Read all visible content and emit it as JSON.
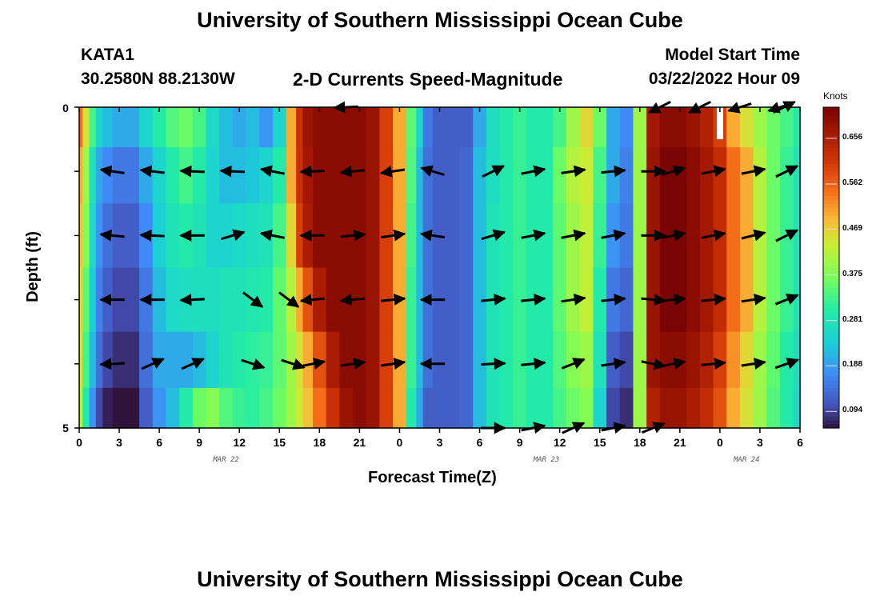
{
  "page": {
    "title": "University of Southern Mississippi Ocean Cube",
    "bottom_title": "University of Southern Mississippi Ocean Cube",
    "station": "KATA1",
    "coordinates": "30.2580N  88.2130W",
    "plot_title": "2-D Currents Speed-Magnitude",
    "model_start_label": "Model Start Time",
    "model_start_value": "03/22/2022 Hour 09"
  },
  "chart_data": {
    "type": "heatmap",
    "title": "2-D Currents Speed-Magnitude",
    "xlabel": "Forecast Time(Z)",
    "ylabel": "Depth (ft)",
    "x_ticks": [
      "0",
      "3",
      "6",
      "9",
      "12",
      "15",
      "18",
      "21",
      "0",
      "3",
      "6",
      "9",
      "12",
      "15",
      "18",
      "21",
      "0",
      "3",
      "6"
    ],
    "x_range_hours": [
      0,
      54
    ],
    "y_ticks": [
      "0",
      "5"
    ],
    "y_range_ft": [
      0,
      5
    ],
    "date_labels": [
      {
        "label": "MAR 22",
        "hour": 11
      },
      {
        "label": "MAR 23",
        "hour": 35
      },
      {
        "label": "MAR 24",
        "hour": 50
      }
    ],
    "colorbar": {
      "units": "Knots",
      "range": [
        0.06,
        0.72
      ],
      "ticks": [
        "0.094",
        "0.188",
        "0.281",
        "0.375",
        "0.469",
        "0.562",
        "0.656"
      ],
      "tick_values": [
        0.094,
        0.188,
        0.281,
        0.375,
        0.469,
        0.562,
        0.656
      ]
    },
    "speed_hours": [
      0,
      0.5,
      1,
      1.5,
      2,
      3,
      4,
      5,
      6,
      7,
      8,
      9,
      10,
      11,
      12,
      13,
      14,
      15,
      16,
      16.5,
      17,
      18,
      19,
      20,
      21,
      22,
      23,
      24,
      25,
      25.5,
      26,
      27,
      28,
      29,
      30,
      31,
      32,
      33,
      34,
      35,
      36,
      37,
      38,
      39,
      40,
      41,
      42,
      43,
      44,
      45,
      46,
      47,
      48,
      49,
      50,
      51,
      52,
      53,
      54
    ],
    "speed_depths_ft": [
      0.25,
      1.0,
      2.0,
      3.0,
      4.0,
      4.75
    ],
    "speed_knots": [
      [
        0.55,
        0.45,
        0.33,
        0.25,
        0.22,
        0.2,
        0.2,
        0.25,
        0.3,
        0.34,
        0.36,
        0.33,
        0.26,
        0.22,
        0.2,
        0.22,
        0.18,
        0.25,
        0.5,
        0.62,
        0.68,
        0.7,
        0.7,
        0.7,
        0.7,
        0.68,
        0.6,
        0.5,
        0.35,
        0.25,
        0.15,
        0.12,
        0.12,
        0.12,
        0.2,
        0.27,
        0.3,
        0.32,
        0.3,
        0.3,
        0.33,
        0.4,
        0.46,
        0.36,
        0.2,
        0.17,
        0.4,
        0.67,
        0.7,
        0.7,
        0.68,
        0.65,
        0.6,
        0.5,
        0.45,
        0.4,
        0.36,
        0.33,
        0.3
      ],
      [
        0.5,
        0.4,
        0.28,
        0.2,
        0.17,
        0.15,
        0.15,
        0.2,
        0.25,
        0.3,
        0.33,
        0.3,
        0.25,
        0.22,
        0.22,
        0.23,
        0.25,
        0.3,
        0.5,
        0.62,
        0.67,
        0.7,
        0.7,
        0.7,
        0.7,
        0.68,
        0.6,
        0.5,
        0.34,
        0.22,
        0.14,
        0.12,
        0.12,
        0.13,
        0.22,
        0.27,
        0.3,
        0.32,
        0.3,
        0.3,
        0.36,
        0.42,
        0.44,
        0.33,
        0.2,
        0.16,
        0.4,
        0.68,
        0.72,
        0.72,
        0.7,
        0.67,
        0.63,
        0.55,
        0.5,
        0.42,
        0.36,
        0.32,
        0.28
      ],
      [
        0.48,
        0.38,
        0.26,
        0.18,
        0.14,
        0.12,
        0.12,
        0.17,
        0.24,
        0.28,
        0.3,
        0.28,
        0.25,
        0.25,
        0.26,
        0.27,
        0.28,
        0.33,
        0.46,
        0.6,
        0.66,
        0.7,
        0.7,
        0.7,
        0.7,
        0.68,
        0.6,
        0.5,
        0.33,
        0.22,
        0.14,
        0.12,
        0.12,
        0.13,
        0.22,
        0.28,
        0.3,
        0.32,
        0.3,
        0.3,
        0.35,
        0.4,
        0.43,
        0.32,
        0.18,
        0.15,
        0.4,
        0.68,
        0.72,
        0.72,
        0.7,
        0.67,
        0.63,
        0.55,
        0.5,
        0.42,
        0.36,
        0.32,
        0.28
      ],
      [
        0.46,
        0.35,
        0.24,
        0.16,
        0.12,
        0.1,
        0.1,
        0.15,
        0.22,
        0.26,
        0.27,
        0.27,
        0.27,
        0.28,
        0.28,
        0.29,
        0.3,
        0.35,
        0.42,
        0.5,
        0.58,
        0.66,
        0.7,
        0.7,
        0.7,
        0.68,
        0.6,
        0.5,
        0.32,
        0.22,
        0.14,
        0.12,
        0.12,
        0.13,
        0.22,
        0.28,
        0.3,
        0.32,
        0.3,
        0.3,
        0.35,
        0.4,
        0.43,
        0.3,
        0.15,
        0.13,
        0.4,
        0.68,
        0.72,
        0.72,
        0.7,
        0.67,
        0.63,
        0.55,
        0.5,
        0.42,
        0.36,
        0.32,
        0.28
      ],
      [
        0.45,
        0.33,
        0.22,
        0.14,
        0.1,
        0.08,
        0.08,
        0.14,
        0.2,
        0.2,
        0.2,
        0.22,
        0.25,
        0.28,
        0.3,
        0.31,
        0.32,
        0.35,
        0.4,
        0.45,
        0.5,
        0.58,
        0.66,
        0.7,
        0.7,
        0.68,
        0.6,
        0.5,
        0.32,
        0.22,
        0.14,
        0.12,
        0.12,
        0.13,
        0.22,
        0.28,
        0.3,
        0.32,
        0.3,
        0.3,
        0.34,
        0.38,
        0.4,
        0.28,
        0.12,
        0.1,
        0.4,
        0.68,
        0.7,
        0.7,
        0.68,
        0.65,
        0.6,
        0.52,
        0.46,
        0.4,
        0.35,
        0.3,
        0.27
      ],
      [
        0.42,
        0.3,
        0.18,
        0.1,
        0.07,
        0.06,
        0.06,
        0.12,
        0.18,
        0.22,
        0.3,
        0.36,
        0.38,
        0.34,
        0.32,
        0.31,
        0.33,
        0.36,
        0.4,
        0.44,
        0.48,
        0.55,
        0.62,
        0.68,
        0.7,
        0.68,
        0.6,
        0.5,
        0.3,
        0.2,
        0.12,
        0.12,
        0.12,
        0.13,
        0.22,
        0.28,
        0.3,
        0.32,
        0.3,
        0.3,
        0.33,
        0.36,
        0.38,
        0.25,
        0.1,
        0.08,
        0.4,
        0.65,
        0.68,
        0.68,
        0.66,
        0.63,
        0.58,
        0.5,
        0.45,
        0.4,
        0.34,
        0.3,
        0.26
      ]
    ],
    "vector_rows": [
      {
        "depth_ft": 0.0,
        "vectors": [
          {
            "hour": 20,
            "dx": -1.0,
            "dy": 0.05
          },
          {
            "hour": 43.5,
            "dx": -0.9,
            "dy": 0.45
          },
          {
            "hour": 46.5,
            "dx": -0.9,
            "dy": 0.45
          },
          {
            "hour": 49.5,
            "dx": -0.95,
            "dy": 0.3
          },
          {
            "hour": 52.5,
            "dx": -0.95,
            "dy": 0.3
          },
          {
            "hour": 52.8,
            "dx": 0.9,
            "dy": -0.45
          }
        ]
      },
      {
        "depth_ft": 1.0,
        "vectors": [
          {
            "hour": 2.5,
            "dx": -1.0,
            "dy": -0.15
          },
          {
            "hour": 5.5,
            "dx": -1.0,
            "dy": -0.12
          },
          {
            "hour": 8.5,
            "dx": -1.0,
            "dy": -0.05
          },
          {
            "hour": 11.5,
            "dx": -1.0,
            "dy": -0.05
          },
          {
            "hour": 14.5,
            "dx": -1.0,
            "dy": -0.2
          },
          {
            "hour": 17.5,
            "dx": -1.0,
            "dy": 0.05
          },
          {
            "hour": 20.5,
            "dx": -1.0,
            "dy": 0.1
          },
          {
            "hour": 23.5,
            "dx": -1.0,
            "dy": 0.15
          },
          {
            "hour": 26.5,
            "dx": -1.0,
            "dy": -0.3
          },
          {
            "hour": 31.0,
            "dx": 1.0,
            "dy": -0.5
          },
          {
            "hour": 34.0,
            "dx": 1.0,
            "dy": -0.2
          },
          {
            "hour": 37.0,
            "dx": 1.0,
            "dy": -0.15
          },
          {
            "hour": 40.0,
            "dx": 1.0,
            "dy": -0.1
          },
          {
            "hour": 43.0,
            "dx": 1.0,
            "dy": 0.0
          },
          {
            "hour": 44.5,
            "dx": 1.0,
            "dy": -0.3
          },
          {
            "hour": 47.5,
            "dx": 1.0,
            "dy": -0.2
          },
          {
            "hour": 50.5,
            "dx": 1.0,
            "dy": -0.2
          },
          {
            "hour": 53.0,
            "dx": 1.0,
            "dy": -0.5
          }
        ]
      },
      {
        "depth_ft": 2.0,
        "vectors": [
          {
            "hour": 2.5,
            "dx": -1.0,
            "dy": -0.1
          },
          {
            "hour": 5.5,
            "dx": -1.0,
            "dy": -0.05
          },
          {
            "hour": 8.5,
            "dx": -1.0,
            "dy": 0.0
          },
          {
            "hour": 11.5,
            "dx": 1.0,
            "dy": -0.3
          },
          {
            "hour": 14.5,
            "dx": -1.0,
            "dy": -0.2
          },
          {
            "hour": 17.5,
            "dx": -1.0,
            "dy": 0.0
          },
          {
            "hour": 20.5,
            "dx": 1.0,
            "dy": -0.1
          },
          {
            "hour": 23.5,
            "dx": 1.0,
            "dy": -0.15
          },
          {
            "hour": 26.5,
            "dx": -1.0,
            "dy": -0.15
          },
          {
            "hour": 31.0,
            "dx": 1.0,
            "dy": -0.3
          },
          {
            "hour": 34.0,
            "dx": 1.0,
            "dy": -0.2
          },
          {
            "hour": 37.0,
            "dx": 1.0,
            "dy": -0.2
          },
          {
            "hour": 40.0,
            "dx": 1.0,
            "dy": -0.2
          },
          {
            "hour": 43.0,
            "dx": 1.0,
            "dy": 0.0
          },
          {
            "hour": 44.5,
            "dx": 1.0,
            "dy": -0.2
          },
          {
            "hour": 47.5,
            "dx": 1.0,
            "dy": -0.2
          },
          {
            "hour": 50.5,
            "dx": 1.0,
            "dy": -0.25
          },
          {
            "hour": 53.0,
            "dx": 1.0,
            "dy": -0.5
          }
        ]
      },
      {
        "depth_ft": 3.0,
        "vectors": [
          {
            "hour": 2.5,
            "dx": -1.0,
            "dy": 0.0
          },
          {
            "hour": 5.5,
            "dx": -1.0,
            "dy": 0.0
          },
          {
            "hour": 8.5,
            "dx": -1.0,
            "dy": 0.05
          },
          {
            "hour": 13.0,
            "dx": 0.8,
            "dy": 0.6
          },
          {
            "hour": 15.7,
            "dx": 0.8,
            "dy": 0.6
          },
          {
            "hour": 17.5,
            "dx": -1.0,
            "dy": 0.1
          },
          {
            "hour": 20.5,
            "dx": -1.0,
            "dy": 0.1
          },
          {
            "hour": 23.5,
            "dx": 1.0,
            "dy": -0.1
          },
          {
            "hour": 26.5,
            "dx": -1.0,
            "dy": 0.0
          },
          {
            "hour": 31.0,
            "dx": 1.0,
            "dy": -0.1
          },
          {
            "hour": 34.0,
            "dx": 1.0,
            "dy": -0.1
          },
          {
            "hour": 37.0,
            "dx": 1.0,
            "dy": -0.15
          },
          {
            "hour": 40.0,
            "dx": 1.0,
            "dy": -0.1
          },
          {
            "hour": 43.0,
            "dx": 1.0,
            "dy": 0.1
          },
          {
            "hour": 44.5,
            "dx": 1.0,
            "dy": -0.1
          },
          {
            "hour": 47.5,
            "dx": 1.0,
            "dy": -0.1
          },
          {
            "hour": 50.5,
            "dx": 1.0,
            "dy": -0.15
          },
          {
            "hour": 53.0,
            "dx": 1.0,
            "dy": -0.4
          }
        ]
      },
      {
        "depth_ft": 4.0,
        "vectors": [
          {
            "hour": 2.5,
            "dx": -1.0,
            "dy": 0.05
          },
          {
            "hour": 5.5,
            "dx": 1.0,
            "dy": -0.45
          },
          {
            "hour": 8.5,
            "dx": 1.0,
            "dy": -0.45
          },
          {
            "hour": 13.0,
            "dx": 0.9,
            "dy": 0.3
          },
          {
            "hour": 16.0,
            "dx": 0.9,
            "dy": 0.3
          },
          {
            "hour": 17.5,
            "dx": 1.0,
            "dy": -0.2
          },
          {
            "hour": 20.5,
            "dx": 1.0,
            "dy": -0.15
          },
          {
            "hour": 23.5,
            "dx": 1.0,
            "dy": -0.15
          },
          {
            "hour": 26.5,
            "dx": -1.0,
            "dy": 0.0
          },
          {
            "hour": 31.0,
            "dx": 1.0,
            "dy": -0.05
          },
          {
            "hour": 34.0,
            "dx": 1.0,
            "dy": -0.1
          },
          {
            "hour": 37.0,
            "dx": 1.0,
            "dy": -0.4
          },
          {
            "hour": 40.0,
            "dx": 1.0,
            "dy": -0.15
          },
          {
            "hour": 43.0,
            "dx": 1.0,
            "dy": 0.2
          },
          {
            "hour": 44.5,
            "dx": 1.0,
            "dy": -0.2
          },
          {
            "hour": 47.5,
            "dx": 1.0,
            "dy": -0.1
          },
          {
            "hour": 50.5,
            "dx": 1.0,
            "dy": -0.15
          },
          {
            "hour": 53.0,
            "dx": 1.0,
            "dy": -0.35
          }
        ]
      },
      {
        "depth_ft": 5.0,
        "vectors": [
          {
            "hour": 31.0,
            "dx": 1.0,
            "dy": 0.0
          },
          {
            "hour": 34.0,
            "dx": 1.0,
            "dy": -0.2
          },
          {
            "hour": 37.0,
            "dx": 1.0,
            "dy": -0.45
          },
          {
            "hour": 40.0,
            "dx": 1.0,
            "dy": -0.2
          },
          {
            "hour": 43.0,
            "dx": 1.0,
            "dy": -0.4
          }
        ]
      }
    ]
  }
}
